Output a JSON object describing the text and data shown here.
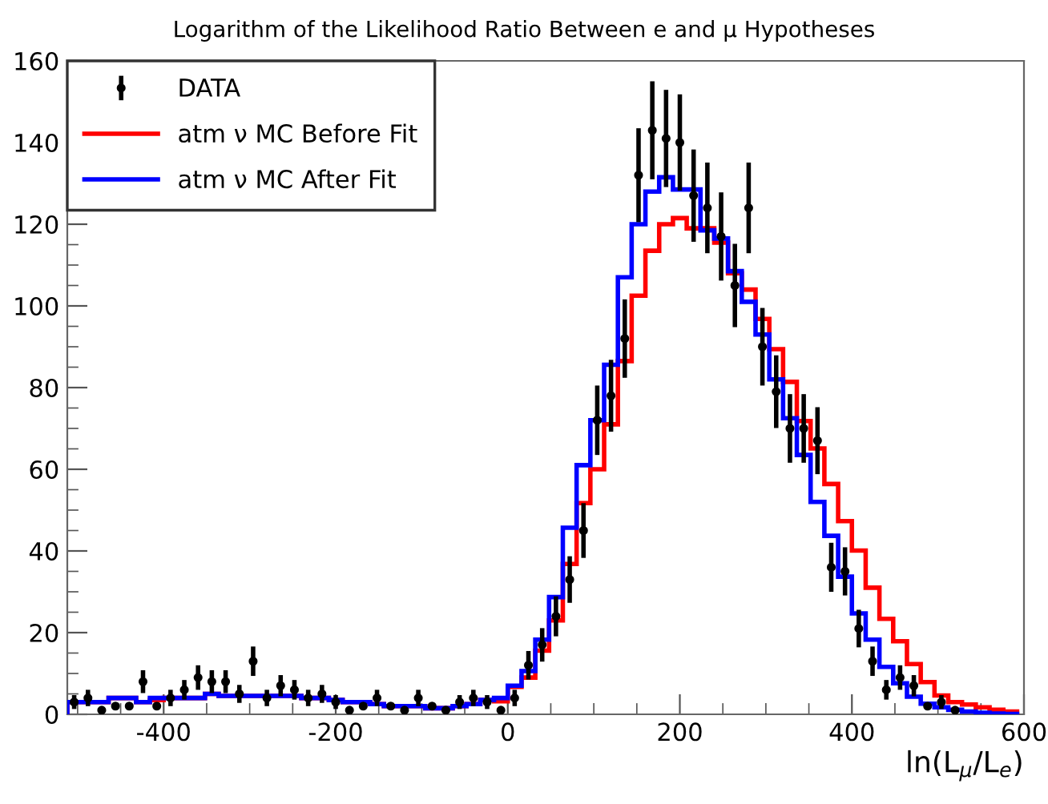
{
  "chart_data": {
    "type": "histogram",
    "title": "Logarithm of the Likelihood Ratio Between e and μ Hypotheses",
    "xlabel": "ln(L$_{μ}$/L$_{e}$)",
    "bins": [
      -512,
      -496,
      -480,
      -464,
      -448,
      -432,
      -416,
      -400,
      -384,
      -368,
      -352,
      -336,
      -320,
      -304,
      -288,
      -272,
      -256,
      -240,
      -224,
      -208,
      -192,
      -176,
      -160,
      -144,
      -128,
      -112,
      -96,
      -80,
      -64,
      -48,
      -32,
      -16,
      0,
      16,
      32,
      48,
      64,
      80,
      96,
      112,
      128,
      144,
      160,
      176,
      192,
      208,
      224,
      240,
      256,
      272,
      288,
      304,
      320,
      336,
      352,
      368,
      384,
      400,
      416,
      432,
      448,
      464,
      480,
      496,
      512,
      528,
      544,
      560,
      576,
      592
    ],
    "series": [
      {
        "name": "DATA",
        "type": "scatter",
        "color": "#000000",
        "marker": "circle",
        "x": [
          -504,
          -488,
          -472,
          -456,
          -440,
          -424,
          -408,
          -392,
          -376,
          -360,
          -344,
          -328,
          -312,
          -296,
          -280,
          -264,
          -248,
          -232,
          -216,
          -200,
          -184,
          -168,
          -152,
          -136,
          -120,
          -104,
          -88,
          -72,
          -56,
          -40,
          -24,
          -8,
          8,
          24,
          40,
          56,
          72,
          88,
          104,
          120,
          136,
          152,
          168,
          184,
          200,
          216,
          232,
          248,
          264,
          280,
          296,
          312,
          328,
          344,
          360,
          376,
          392,
          408,
          424,
          440,
          456,
          472,
          488,
          504,
          520
        ],
        "values": [
          3,
          4,
          1,
          2,
          2,
          8,
          2,
          4,
          6,
          9,
          8,
          8,
          5,
          13,
          4,
          7,
          6,
          4,
          5,
          3,
          1,
          2,
          4,
          2,
          1,
          4,
          2,
          1,
          3,
          4,
          3,
          1,
          4,
          12,
          17,
          24,
          33,
          45,
          72,
          78,
          92,
          132,
          143,
          141,
          140,
          127,
          124,
          117,
          105,
          124,
          90,
          79,
          70,
          70,
          67,
          36,
          35,
          21,
          13,
          6,
          9,
          7,
          2,
          3,
          1
        ],
        "errors": [
          1.7,
          2,
          null,
          null,
          null,
          2.8,
          null,
          2,
          2.4,
          3,
          2.8,
          2.8,
          2.2,
          3.6,
          2,
          2.6,
          2.4,
          2,
          2.2,
          1.7,
          null,
          null,
          2,
          null,
          null,
          2,
          null,
          null,
          1.7,
          2,
          1.7,
          null,
          2,
          3.5,
          4.1,
          4.9,
          5.7,
          6.7,
          8.5,
          8.8,
          9.6,
          11.5,
          12,
          11.9,
          11.8,
          11.3,
          11.1,
          10.8,
          10.2,
          11.1,
          9.5,
          8.9,
          8.4,
          8.4,
          8.2,
          6,
          5.9,
          4.6,
          3.6,
          2.4,
          3,
          2.6,
          null,
          1.7,
          null
        ]
      },
      {
        "name": "atm ν MC Before Fit",
        "color": "#ff0000",
        "values": [
          3,
          3,
          3,
          4,
          4,
          3,
          3.5,
          4,
          4,
          4,
          5,
          4.5,
          4.5,
          4.5,
          4.5,
          4.5,
          4.5,
          4,
          4,
          3.5,
          3,
          3,
          2.5,
          2,
          2,
          2,
          1.5,
          1.5,
          2,
          2.5,
          3.5,
          3.2,
          6.7,
          9,
          15.6,
          23,
          36.8,
          51.7,
          60,
          71,
          86.5,
          102.5,
          113.5,
          120,
          121.5,
          119,
          119,
          115.5,
          108,
          104,
          96.8,
          89.4,
          81.4,
          71.8,
          65.1,
          56.4,
          47.3,
          40.1,
          31,
          23.4,
          17.9,
          12.3,
          7.9,
          4.6,
          3,
          2.4,
          1.7,
          1.1,
          0.7
        ]
      },
      {
        "name": "atm ν MC After Fit",
        "color": "#0000ff",
        "values": [
          3,
          3,
          3,
          4,
          4,
          3,
          4,
          4,
          4,
          4,
          5,
          4.5,
          4.5,
          4.5,
          4.5,
          4.5,
          4.5,
          4,
          4,
          3.5,
          3,
          3,
          2.5,
          2,
          2,
          2,
          1.5,
          1.5,
          2,
          2.5,
          3.5,
          4,
          7,
          10.6,
          18.3,
          28.7,
          45.7,
          61,
          72,
          85.6,
          107,
          120,
          128,
          131.5,
          128.5,
          128.5,
          118.5,
          116.5,
          108.5,
          101,
          93,
          82,
          72.5,
          63.5,
          52,
          43.7,
          33.7,
          24.7,
          18.3,
          11.6,
          7.6,
          4.3,
          2.6,
          1.7,
          1.1,
          0.7,
          0.4,
          0.2,
          0.1
        ]
      }
    ],
    "xlim": [
      -512,
      600
    ],
    "xticks": [
      -400,
      -200,
      0,
      200,
      400,
      600
    ],
    "ylim": [
      0,
      160
    ],
    "yticks": [
      0,
      20,
      40,
      60,
      80,
      100,
      120,
      140,
      160
    ],
    "grid": false,
    "legend": "top left"
  }
}
